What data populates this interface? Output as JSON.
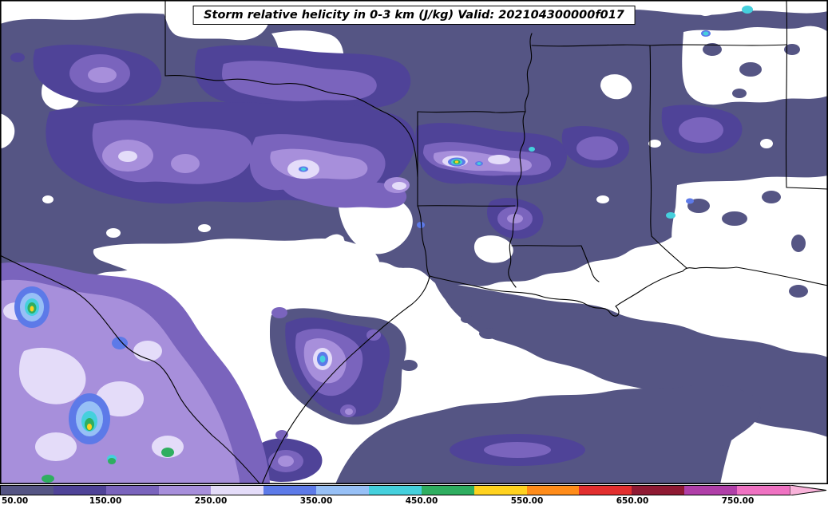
{
  "figure": {
    "title": "Storm relative helicity in 0-3 km (J/kg) Valid: 202104300000f017"
  },
  "chart_data": {
    "type": "filled-contour-map",
    "title": "Storm relative helicity in 0-3 km (J/kg) Valid: 202104300000f017",
    "variable": "Storm relative helicity in 0-3 km",
    "units": "J/kg",
    "valid_stamp": "202104300000f017",
    "map": {
      "background": "#ffffff",
      "outline_color": "#000000"
    },
    "colorbar": {
      "orientation": "horizontal",
      "position": "bottom",
      "extend": "max",
      "levels": [
        50,
        100,
        150,
        200,
        250,
        300,
        350,
        400,
        450,
        500,
        550,
        600,
        650,
        700,
        750,
        800
      ],
      "colors": [
        "#555584",
        "#4f4398",
        "#7a64bd",
        "#a78fdb",
        "#e4dcf9",
        "#5d7ae8",
        "#97c0f6",
        "#45d0dd",
        "#2fae60",
        "#ffd21f",
        "#ff8c1a",
        "#e22f2f",
        "#8f1a33",
        "#b03fa8",
        "#ef72c2"
      ],
      "arrow_color": "#f9b3da",
      "ticks": [
        {
          "value": 50,
          "label": "50.00"
        },
        {
          "value": 150,
          "label": "150.00"
        },
        {
          "value": 250,
          "label": "250.00"
        },
        {
          "value": 350,
          "label": "350.00"
        },
        {
          "value": 450,
          "label": "450.00"
        },
        {
          "value": 550,
          "label": "550.00"
        },
        {
          "value": 650,
          "label": "650.00"
        },
        {
          "value": 750,
          "label": "750.00"
        }
      ]
    }
  }
}
